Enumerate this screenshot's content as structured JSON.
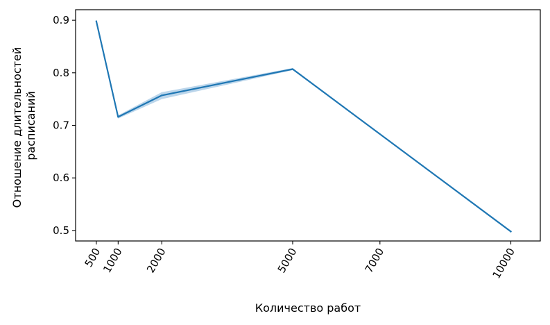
{
  "chart_data": {
    "type": "line",
    "title": "",
    "xlabel": "Количество работ",
    "ylabel_lines": [
      "Отношение длительностей",
      "расписаний"
    ],
    "x": [
      500,
      1000,
      2000,
      5000,
      7000,
      10000
    ],
    "xticks": [
      500,
      1000,
      2000,
      5000,
      7000,
      10000
    ],
    "xtick_labels": [
      "500",
      "1000",
      "2000",
      "5000",
      "7000",
      "10000"
    ],
    "xtick_rotation": 60,
    "yticks": [
      0.5,
      0.6,
      0.7,
      0.8,
      0.9
    ],
    "ytick_labels": [
      "0.5",
      "0.6",
      "0.7",
      "0.8",
      "0.9"
    ],
    "xlim": [
      25,
      10675
    ],
    "ylim": [
      0.48,
      0.92
    ],
    "grid": false,
    "series": [
      {
        "x": [
          500,
          1000,
          2000,
          5000,
          10000
        ],
        "values": [
          0.898,
          0.716,
          0.757,
          0.807,
          0.498
        ],
        "ci_lower": [
          0.898,
          0.713,
          0.75,
          0.805,
          0.498
        ],
        "ci_upper": [
          0.898,
          0.719,
          0.763,
          0.809,
          0.498
        ],
        "color": "#1f77b4",
        "band_color": "#a6c8e4"
      }
    ]
  }
}
